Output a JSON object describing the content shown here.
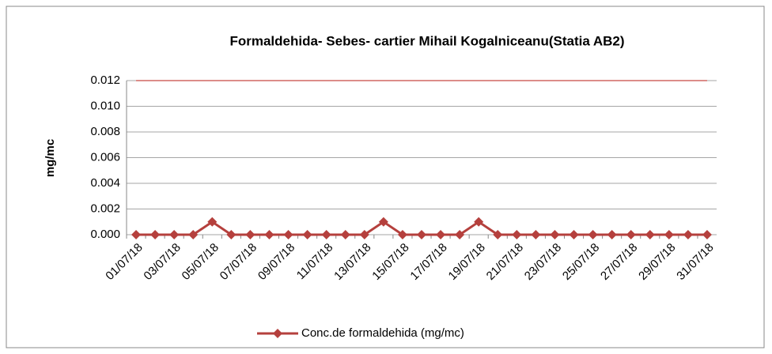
{
  "chart_data": {
    "type": "line",
    "title": "Formaldehida- Sebes-  cartier Mihail Kogalniceanu(Statia AB2)",
    "ylabel": "mg/mc",
    "categories": [
      "01/07/18",
      null,
      "03/07/18",
      null,
      "05/07/18",
      null,
      "07/07/18",
      null,
      "09/07/18",
      null,
      "11/07/18",
      null,
      "13/07/18",
      null,
      "15/07/18",
      null,
      "17/07/18",
      null,
      "19/07/18",
      null,
      "21/07/18",
      null,
      "23/07/18",
      null,
      "25/07/18",
      null,
      "27/07/18",
      null,
      "29/07/18",
      null,
      "31/07/18"
    ],
    "series": [
      {
        "name": "Conc.de formaldehida (mg/mc)",
        "color": "#b5403d",
        "values": [
          0,
          0,
          0,
          0,
          0.001,
          0,
          0,
          0,
          0,
          0,
          0,
          0,
          0,
          0.001,
          0,
          0,
          0,
          0,
          0.001,
          0,
          0,
          0,
          0,
          0,
          0,
          0,
          0,
          0,
          0,
          0,
          0
        ]
      }
    ],
    "reference_line": {
      "value": 0.012,
      "color": "#d06662"
    },
    "ylim": [
      0,
      0.012
    ],
    "yticks": [
      {
        "value": 0,
        "label": "0.000"
      },
      {
        "value": 0.002,
        "label": "0.002"
      },
      {
        "value": 0.004,
        "label": "0.004"
      },
      {
        "value": 0.006,
        "label": "0.006"
      },
      {
        "value": 0.008,
        "label": "0.008"
      },
      {
        "value": 0.01,
        "label": "0.010"
      },
      {
        "value": 0.012,
        "label": "0.012"
      }
    ],
    "grid": true,
    "legend": "bottom"
  }
}
